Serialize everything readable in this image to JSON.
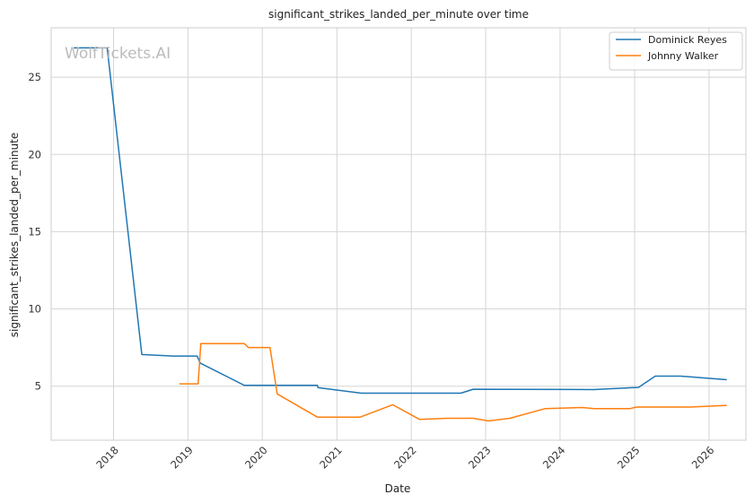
{
  "chart_data": {
    "type": "line",
    "title": "significant_strikes_landed_per_minute over time",
    "xlabel": "Date",
    "ylabel": "significant_strikes_landed_per_minute",
    "watermark": "WolfTickets.AI",
    "x_range": [
      "2017-03-01",
      "2026-07-01"
    ],
    "ylim": [
      1.5,
      28.2
    ],
    "x_ticks": [
      "2018",
      "2019",
      "2020",
      "2021",
      "2022",
      "2023",
      "2024",
      "2025",
      "2026"
    ],
    "y_ticks": [
      5,
      10,
      15,
      20,
      25
    ],
    "grid": true,
    "legend_position": "top-right",
    "series": [
      {
        "name": "Dominick Reyes",
        "color": "#1f77b4",
        "points": [
          [
            "2017-06-20",
            26.9
          ],
          [
            "2017-12-01",
            26.9
          ],
          [
            "2018-05-20",
            7.05
          ],
          [
            "2018-10-20",
            6.95
          ],
          [
            "2019-02-15",
            6.95
          ],
          [
            "2019-03-02",
            6.5
          ],
          [
            "2019-10-05",
            5.05
          ],
          [
            "2020-09-27",
            5.05
          ],
          [
            "2020-10-01",
            4.9
          ],
          [
            "2021-05-01",
            4.55
          ],
          [
            "2022-09-01",
            4.55
          ],
          [
            "2022-11-01",
            4.8
          ],
          [
            "2024-06-15",
            4.78
          ],
          [
            "2024-12-20",
            4.9
          ],
          [
            "2025-01-20",
            4.92
          ],
          [
            "2025-04-12",
            5.65
          ],
          [
            "2025-08-15",
            5.65
          ],
          [
            "2026-03-29",
            5.42
          ]
        ]
      },
      {
        "name": "Johnny Walker",
        "color": "#ff7f0e",
        "points": [
          [
            "2018-11-20",
            5.15
          ],
          [
            "2019-02-20",
            5.15
          ],
          [
            "2019-03-05",
            7.75
          ],
          [
            "2019-10-05",
            7.75
          ],
          [
            "2019-10-25",
            7.5
          ],
          [
            "2020-02-08",
            7.5
          ],
          [
            "2020-03-14",
            4.5
          ],
          [
            "2020-09-27",
            3.0
          ],
          [
            "2021-04-25",
            3.0
          ],
          [
            "2021-10-02",
            3.8
          ],
          [
            "2022-02-10",
            2.85
          ],
          [
            "2022-07-01",
            2.92
          ],
          [
            "2022-11-01",
            2.92
          ],
          [
            "2023-01-15",
            2.75
          ],
          [
            "2023-04-30",
            2.92
          ],
          [
            "2023-10-20",
            3.55
          ],
          [
            "2024-04-20",
            3.62
          ],
          [
            "2024-06-15",
            3.55
          ],
          [
            "2024-12-10",
            3.55
          ],
          [
            "2025-01-10",
            3.65
          ],
          [
            "2025-10-01",
            3.65
          ],
          [
            "2026-03-29",
            3.76
          ]
        ]
      }
    ]
  }
}
